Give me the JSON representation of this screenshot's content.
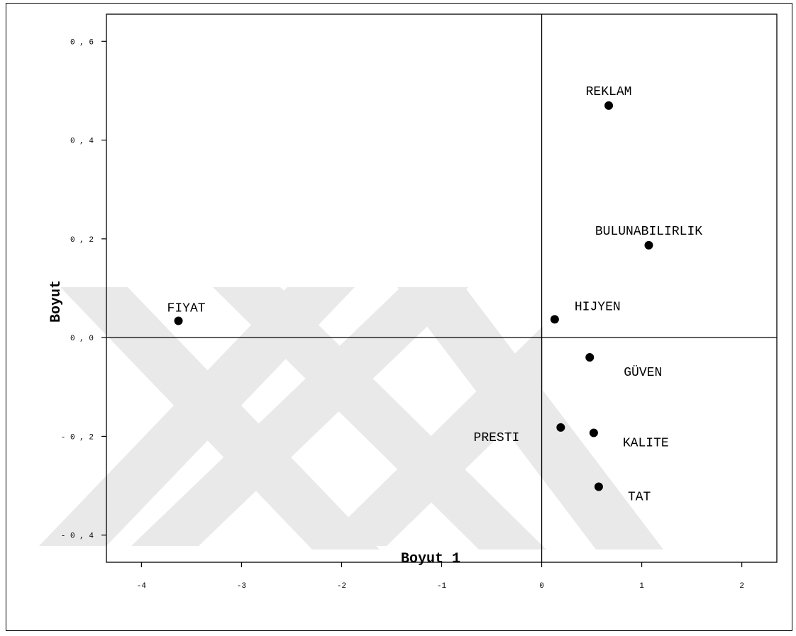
{
  "chart_data": {
    "type": "scatter",
    "xlabel": "Boyut 1",
    "ylabel": "Boyut",
    "xlim": [
      -4.35,
      2.35
    ],
    "ylim": [
      -0.455,
      0.655
    ],
    "x_ticks": [
      -4,
      -3,
      -2,
      -1,
      0,
      1,
      2
    ],
    "x_tick_labels": [
      "-4",
      "-3",
      "-2",
      "-1",
      "0",
      "1",
      "2"
    ],
    "y_ticks": [
      0.6,
      0.4,
      0.2,
      0.0,
      -0.2,
      -0.4
    ],
    "y_tick_labels": [
      "0,6",
      "0,4",
      "0,2",
      "0,0",
      "-0,2",
      "-0,4"
    ],
    "reference_lines": {
      "x": 0,
      "y": 0
    },
    "grid": false,
    "points": [
      {
        "label": "REKLAM",
        "x": 0.67,
        "y": 0.47,
        "label_pos": "above"
      },
      {
        "label": "BULUNABILIRLIK",
        "x": 1.07,
        "y": 0.187,
        "label_pos": "above"
      },
      {
        "label": "FIYAT",
        "x": -3.63,
        "y": 0.034,
        "label_pos": "above-right"
      },
      {
        "label": "HIJYEN",
        "x": 0.13,
        "y": 0.037,
        "label_pos": "right-up"
      },
      {
        "label": "GÜVEN",
        "x": 0.48,
        "y": -0.04,
        "label_pos": "right-down"
      },
      {
        "label": "PRESTI",
        "x": 0.19,
        "y": -0.182,
        "label_pos": "left"
      },
      {
        "label": "KALITE",
        "x": 0.52,
        "y": -0.193,
        "label_pos": "right"
      },
      {
        "label": "TAT",
        "x": 0.57,
        "y": -0.302,
        "label_pos": "right"
      }
    ]
  },
  "colors": {
    "marker": "#000000",
    "axis": "#000000",
    "watermark": "#e9e9e9"
  }
}
